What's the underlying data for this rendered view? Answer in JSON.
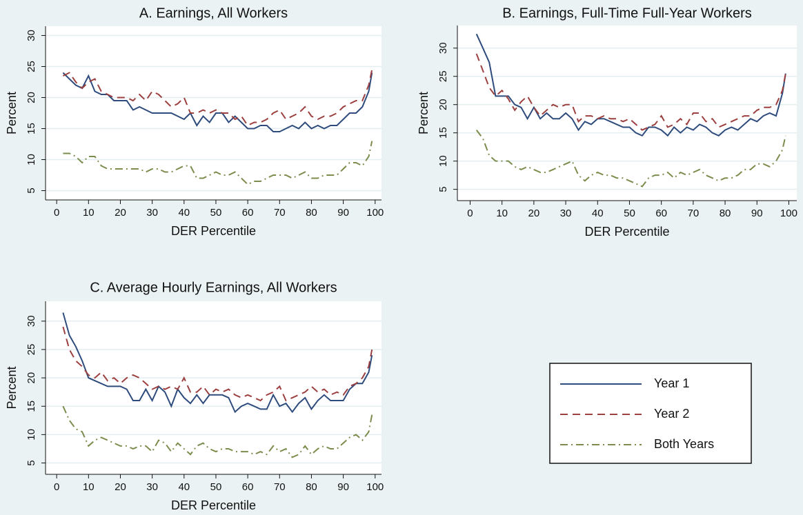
{
  "chart_data": [
    {
      "type": "line",
      "title": "A. Earnings, All Workers",
      "xlabel": "DER Percentile",
      "ylabel": "Percent",
      "x": [
        2,
        4,
        6,
        8,
        10,
        12,
        14,
        16,
        18,
        20,
        22,
        24,
        26,
        28,
        30,
        32,
        34,
        36,
        38,
        40,
        42,
        44,
        46,
        48,
        50,
        52,
        54,
        56,
        58,
        60,
        62,
        64,
        66,
        68,
        70,
        72,
        74,
        76,
        78,
        80,
        82,
        84,
        86,
        88,
        90,
        92,
        94,
        96,
        98,
        99
      ],
      "xlim": [
        -3.5,
        102
      ],
      "xticks": [
        0,
        10,
        20,
        30,
        40,
        50,
        60,
        70,
        80,
        90,
        100
      ],
      "ylim": [
        3.5,
        31.5
      ],
      "yticks": [
        5,
        10,
        15,
        20,
        25,
        30
      ],
      "grid": true,
      "series": [
        {
          "name": "Year 1",
          "color": "#2d4b7c",
          "style": "solid",
          "values": [
            24,
            23,
            22,
            21.5,
            23.5,
            21,
            20.5,
            20.5,
            19.5,
            19.5,
            19.5,
            18,
            18.5,
            18,
            17.5,
            17.5,
            17.5,
            17.5,
            17,
            16.5,
            17.5,
            15.5,
            17,
            16,
            17.5,
            17.5,
            16,
            17,
            16,
            15,
            15,
            15.5,
            15.5,
            14.5,
            14.5,
            15,
            15.5,
            15,
            16,
            15,
            15.5,
            15,
            15.5,
            15.5,
            16.5,
            17.5,
            17.5,
            18.5,
            21,
            24
          ]
        },
        {
          "name": "Year 2",
          "color": "#9b3f3f",
          "style": "dashed",
          "values": [
            23.5,
            24,
            22.5,
            21.5,
            22.5,
            23,
            21,
            20.5,
            20,
            20,
            20,
            19.5,
            20.5,
            19.5,
            21,
            20.5,
            19.5,
            18.5,
            19,
            20,
            17.5,
            17.5,
            18,
            17.5,
            18,
            17.5,
            17.5,
            16.5,
            17,
            15.5,
            16,
            16,
            16.5,
            17.5,
            18,
            16.5,
            17,
            17.5,
            18.5,
            17,
            16.5,
            17,
            17,
            17.5,
            18.5,
            19,
            19.5,
            19.5,
            22,
            24.5
          ]
        },
        {
          "name": "Both Years",
          "color": "#7b8c4c",
          "style": "dashdot",
          "values": [
            11,
            11,
            10.5,
            9.5,
            10.5,
            10.5,
            9,
            8.5,
            8.5,
            8.5,
            8.5,
            8.5,
            8.5,
            8,
            8.5,
            8.5,
            8,
            8,
            8.5,
            9,
            9,
            7,
            7,
            7.5,
            8,
            7.5,
            7.5,
            8,
            7,
            6,
            6.5,
            6.5,
            7,
            7.5,
            7.5,
            7.5,
            7,
            7.5,
            8,
            7,
            7,
            7.5,
            7.5,
            7.5,
            8.5,
            9.5,
            9.5,
            9,
            10.5,
            13
          ]
        }
      ]
    },
    {
      "type": "line",
      "title": "B. Earnings, Full-Time Full-Year Workers",
      "xlabel": "DER Percentile",
      "ylabel": "Percent",
      "x": [
        2,
        4,
        6,
        8,
        10,
        12,
        14,
        16,
        18,
        20,
        22,
        24,
        26,
        28,
        30,
        32,
        34,
        36,
        38,
        40,
        42,
        44,
        46,
        48,
        50,
        52,
        54,
        56,
        58,
        60,
        62,
        64,
        66,
        68,
        70,
        72,
        74,
        76,
        78,
        80,
        82,
        84,
        86,
        88,
        90,
        92,
        94,
        96,
        98,
        99
      ],
      "xlim": [
        -4,
        102.5
      ],
      "xticks": [
        0,
        10,
        20,
        30,
        40,
        50,
        60,
        70,
        80,
        90,
        100
      ],
      "ylim": [
        3,
        34
      ],
      "yticks": [
        5,
        10,
        15,
        20,
        25,
        30
      ],
      "grid": true,
      "series": [
        {
          "color": "#2d4b7c",
          "style": "solid",
          "values": [
            32.5,
            30,
            27.5,
            21.5,
            21.5,
            21.5,
            20,
            19.5,
            17.5,
            19.5,
            17.5,
            18.5,
            17.5,
            17.5,
            18.5,
            17.5,
            15.5,
            17,
            16.5,
            17.5,
            17.5,
            17,
            16.5,
            16,
            16,
            15,
            14.5,
            16,
            16,
            15.5,
            14.5,
            16,
            15,
            16,
            15.5,
            16.5,
            16,
            15,
            14.5,
            15.5,
            16,
            15.5,
            16.5,
            17.5,
            17,
            18,
            18.5,
            18,
            22,
            25.5
          ]
        },
        {
          "color": "#9b3f3f",
          "style": "dashed",
          "values": [
            29,
            26,
            23,
            21.5,
            22.5,
            21,
            19,
            20.5,
            21.5,
            19.5,
            18,
            19,
            20,
            19.5,
            20,
            20,
            17,
            18,
            18,
            17.5,
            18,
            17.5,
            17.5,
            17,
            17.5,
            16.5,
            15.5,
            16,
            16.5,
            18,
            16,
            16.5,
            17.5,
            16.5,
            18.5,
            18.5,
            17,
            17.5,
            16,
            16.5,
            17,
            17.5,
            18,
            18,
            19,
            19.5,
            19.5,
            20,
            22.5,
            25.5
          ]
        },
        {
          "color": "#7b8c4c",
          "style": "dashdot",
          "values": [
            15.5,
            14,
            11,
            10,
            10,
            10,
            9,
            8.5,
            9,
            8.5,
            8,
            8,
            8.5,
            9,
            9.5,
            10,
            7.5,
            6.5,
            7.5,
            8,
            7.5,
            7.5,
            7,
            7,
            6.5,
            6,
            5.5,
            7,
            7.5,
            7.5,
            8,
            7,
            8,
            7.5,
            8,
            8.5,
            7.5,
            7,
            6.5,
            7,
            7,
            7.5,
            8.5,
            8.5,
            9.5,
            9.5,
            9,
            10,
            12,
            14.5
          ]
        }
      ]
    },
    {
      "type": "line",
      "title": "C. Average Hourly Earnings, All Workers",
      "xlabel": "DER Percentile",
      "ylabel": "Percent",
      "x": [
        2,
        4,
        6,
        8,
        10,
        12,
        14,
        16,
        18,
        20,
        22,
        24,
        26,
        28,
        30,
        32,
        34,
        36,
        38,
        40,
        42,
        44,
        46,
        48,
        50,
        52,
        54,
        56,
        58,
        60,
        62,
        64,
        66,
        68,
        70,
        72,
        74,
        76,
        78,
        80,
        82,
        84,
        86,
        88,
        90,
        92,
        94,
        96,
        98,
        99
      ],
      "xlim": [
        -3.5,
        102
      ],
      "xticks": [
        0,
        10,
        20,
        30,
        40,
        50,
        60,
        70,
        80,
        90,
        100
      ],
      "ylim": [
        3,
        33.5
      ],
      "yticks": [
        5,
        10,
        15,
        20,
        25,
        30
      ],
      "grid": true,
      "series": [
        {
          "color": "#2d4b7c",
          "style": "solid",
          "values": [
            31.5,
            27.5,
            25.5,
            23,
            20,
            19.5,
            19,
            18.5,
            18.5,
            18.5,
            18,
            16,
            16,
            18,
            16,
            18.5,
            17.5,
            15,
            18,
            16.5,
            15.5,
            17,
            15.5,
            17,
            17,
            17,
            16.5,
            14,
            15,
            15.5,
            15,
            14.5,
            14.5,
            17,
            15,
            15.5,
            14,
            15.5,
            16.5,
            14.5,
            16,
            17,
            16,
            16,
            16,
            18,
            19,
            19,
            21,
            24
          ]
        },
        {
          "color": "#9b3f3f",
          "style": "dashed",
          "values": [
            29,
            25,
            23,
            22,
            20.5,
            20,
            21,
            19.5,
            20,
            19,
            20,
            20.5,
            20,
            19,
            18,
            18.5,
            18,
            18.5,
            18,
            20,
            17.5,
            17.5,
            18.5,
            17,
            18,
            17.5,
            18,
            17,
            16.5,
            17,
            16.5,
            16,
            17,
            17.5,
            18.5,
            16,
            16.5,
            17,
            17.5,
            18.5,
            17.5,
            18,
            17,
            17.5,
            17,
            18.5,
            19,
            20,
            22,
            25
          ]
        },
        {
          "color": "#7b8c4c",
          "style": "dashdot",
          "values": [
            15,
            12.5,
            11,
            10.5,
            8,
            9,
            9.5,
            9,
            8.5,
            8,
            8,
            7.5,
            8,
            8,
            7,
            9,
            8.5,
            7,
            8.5,
            7.5,
            6.5,
            8,
            8.5,
            7.5,
            7,
            7.5,
            7.5,
            7,
            7,
            7,
            6.5,
            7,
            6.5,
            8,
            7,
            7.5,
            6,
            6.5,
            8,
            6.5,
            7.5,
            8,
            7.5,
            7.5,
            8.5,
            9.5,
            10,
            9,
            10.5,
            13.5
          ]
        }
      ]
    }
  ]
}
